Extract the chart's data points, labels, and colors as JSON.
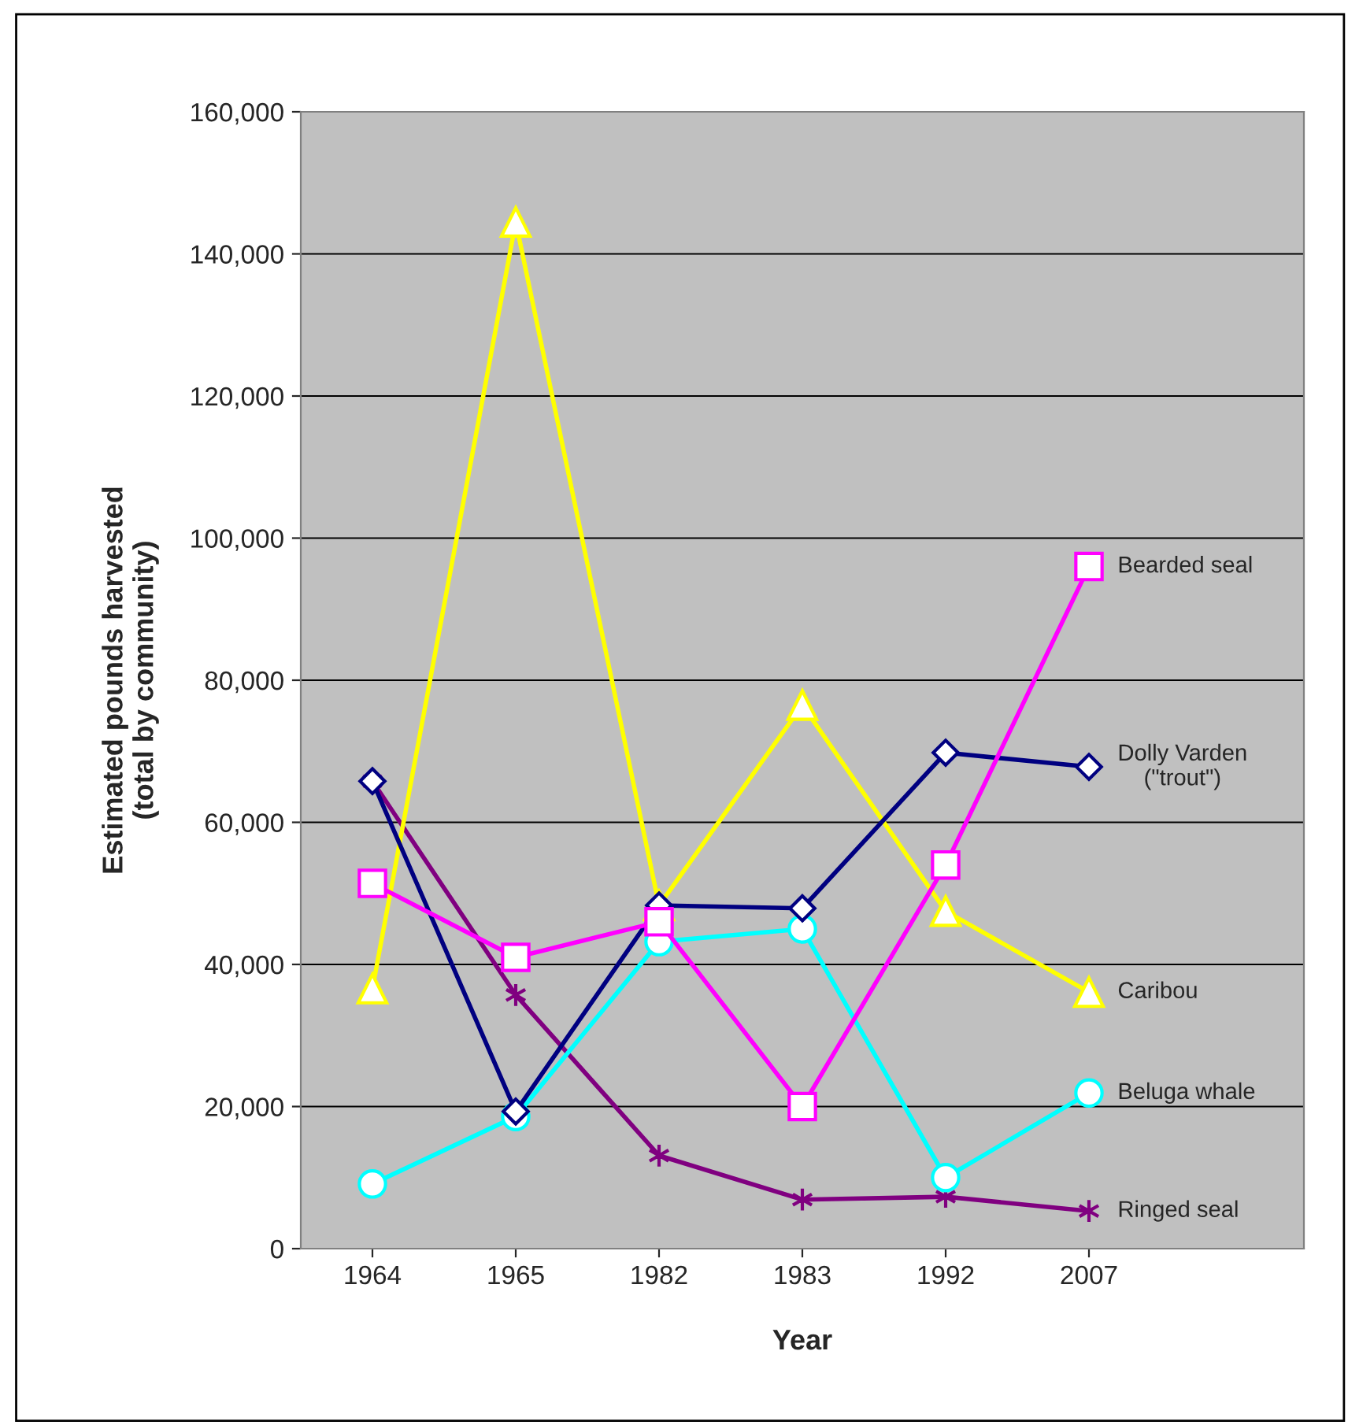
{
  "chart_data": {
    "type": "line",
    "xlabel": "Year",
    "ylabel": "Estimated pounds harvested\n(total by community)",
    "categories": [
      "1964",
      "1965",
      "1982",
      "1983",
      "1992",
      "2007"
    ],
    "series": [
      {
        "name": "Bearded seal",
        "color": "#ff00ff",
        "marker": "square",
        "values": [
          51400,
          41000,
          46000,
          20000,
          54000,
          96000
        ]
      },
      {
        "name": "Dolly Varden\n(\"trout\")",
        "color": "#000080",
        "marker": "diamond",
        "values": [
          65800,
          19300,
          48300,
          47900,
          69800,
          67800
        ]
      },
      {
        "name": "Caribou",
        "color": "#ffff00",
        "marker": "triangle",
        "values": [
          36600,
          144500,
          48300,
          76500,
          47500,
          36100
        ]
      },
      {
        "name": "Beluga whale",
        "color": "#00ffff",
        "marker": "circle",
        "values": [
          9100,
          18600,
          43200,
          45000,
          10000,
          21900
        ]
      },
      {
        "name": "Ringed seal",
        "color": "#800080",
        "marker": "cross",
        "values": [
          65800,
          35700,
          13100,
          6900,
          7300,
          5300
        ]
      }
    ],
    "ylim": [
      0,
      160000
    ],
    "yticks": [
      {
        "value": 0,
        "label": "0"
      },
      {
        "value": 20000,
        "label": "20,000"
      },
      {
        "value": 40000,
        "label": "40,000"
      },
      {
        "value": 60000,
        "label": "60,000"
      },
      {
        "value": 80000,
        "label": "80,000"
      },
      {
        "value": 100000,
        "label": "100,000"
      },
      {
        "value": 120000,
        "label": "120,000"
      },
      {
        "value": 140000,
        "label": "140,000"
      },
      {
        "value": 160000,
        "label": "160,000"
      }
    ],
    "grid": "y",
    "legend": false
  }
}
